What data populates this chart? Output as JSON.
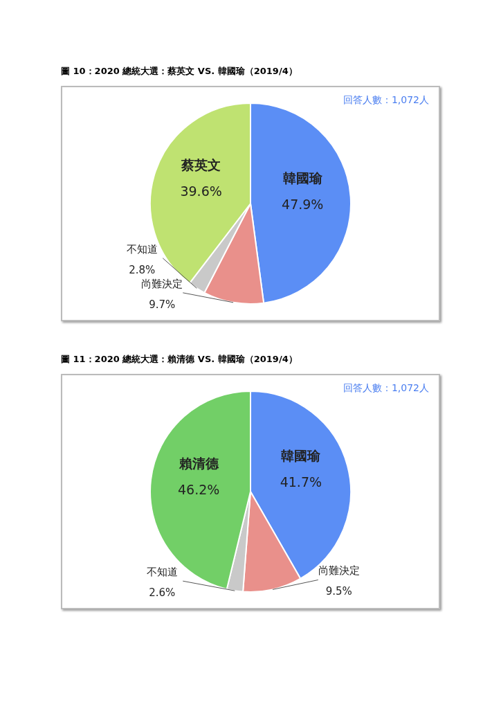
{
  "chart_data": [
    {
      "type": "pie",
      "title": "圖 10：2020 總統大選：蔡英文 VS. 韓國瑜（2019/4）",
      "categories": [
        "韓國瑜",
        "尚難決定",
        "不知道",
        "蔡英文"
      ],
      "values": [
        47.9,
        9.7,
        2.8,
        39.6
      ],
      "value_labels": [
        "47.9%",
        "9.7%",
        "2.8%",
        "39.6%"
      ],
      "colors": [
        "#5b8ef5",
        "#e9908b",
        "#c9c9c9",
        "#bfe271"
      ],
      "annotations": [
        "回答人數：1,072人"
      ]
    },
    {
      "type": "pie",
      "title": "圖 11：2020 總統大選：賴清德 VS. 韓國瑜（2019/4）",
      "categories": [
        "韓國瑜",
        "尚難決定",
        "不知道",
        "賴清德"
      ],
      "values": [
        41.7,
        9.5,
        2.6,
        46.2
      ],
      "value_labels": [
        "41.7%",
        "9.5%",
        "2.6%",
        "46.2%"
      ],
      "colors": [
        "#5b8ef5",
        "#e9908b",
        "#c9c9c9",
        "#72cf67"
      ],
      "annotations": [
        "回答人數：1,072人"
      ]
    }
  ]
}
